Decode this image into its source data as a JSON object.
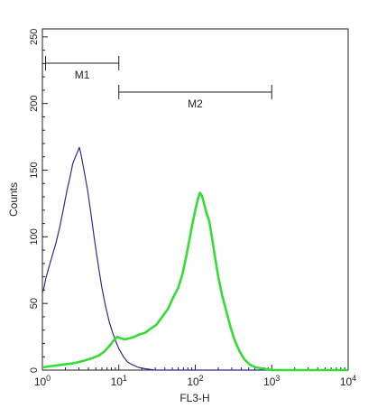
{
  "chart_data": {
    "type": "line",
    "title": "",
    "xlabel": "FL3-H",
    "ylabel": "Counts",
    "x_scale": "log",
    "xlim": [
      1,
      10000
    ],
    "ylim": [
      0,
      256
    ],
    "x_ticks": [
      {
        "value": 1,
        "base": "10",
        "exp": "0"
      },
      {
        "value": 10,
        "base": "10",
        "exp": "1"
      },
      {
        "value": 100,
        "base": "10",
        "exp": "2"
      },
      {
        "value": 1000,
        "base": "10",
        "exp": "3"
      },
      {
        "value": 10000,
        "base": "10",
        "exp": "4"
      }
    ],
    "y_ticks": [
      0,
      50,
      100,
      150,
      200,
      250
    ],
    "grid": false,
    "gates": [
      {
        "label": "M1",
        "range": [
          1.1,
          10
        ]
      },
      {
        "label": "M2",
        "range": [
          10,
          1000
        ]
      }
    ],
    "series": [
      {
        "color": "#2b2f8f",
        "points": [
          [
            1,
            58
          ],
          [
            1.05,
            62
          ],
          [
            1.1,
            68
          ],
          [
            1.2,
            76
          ],
          [
            1.35,
            86
          ],
          [
            1.5,
            95
          ],
          [
            1.7,
            108
          ],
          [
            1.9,
            122
          ],
          [
            2.1,
            135
          ],
          [
            2.3,
            145
          ],
          [
            2.5,
            155
          ],
          [
            2.7,
            160
          ],
          [
            2.9,
            164
          ],
          [
            3.05,
            167
          ],
          [
            3.2,
            162
          ],
          [
            3.5,
            150
          ],
          [
            3.9,
            135
          ],
          [
            4.3,
            118
          ],
          [
            4.8,
            98
          ],
          [
            5.4,
            78
          ],
          [
            6.0,
            62
          ],
          [
            6.7,
            48
          ],
          [
            7.5,
            36
          ],
          [
            8.3,
            28
          ],
          [
            9.2,
            21
          ],
          [
            10,
            16
          ],
          [
            11.5,
            10
          ],
          [
            13,
            6
          ],
          [
            15,
            4
          ],
          [
            18,
            2
          ],
          [
            22,
            1
          ],
          [
            30,
            0
          ],
          [
            100,
            0
          ],
          [
            10000,
            0
          ]
        ]
      },
      {
        "color": "#33dd33",
        "points": [
          [
            1,
            2
          ],
          [
            1.3,
            3
          ],
          [
            1.8,
            4
          ],
          [
            2.5,
            5
          ],
          [
            3.5,
            7
          ],
          [
            4.5,
            9
          ],
          [
            5.5,
            11
          ],
          [
            6.5,
            14
          ],
          [
            7.5,
            18
          ],
          [
            8.5,
            22
          ],
          [
            9.5,
            25
          ],
          [
            10.5,
            24
          ],
          [
            12,
            23
          ],
          [
            14,
            24
          ],
          [
            16,
            25
          ],
          [
            19,
            27
          ],
          [
            22,
            28
          ],
          [
            26,
            31
          ],
          [
            31,
            34
          ],
          [
            37,
            40
          ],
          [
            44,
            46
          ],
          [
            52,
            55
          ],
          [
            60,
            62
          ],
          [
            68,
            72
          ],
          [
            76,
            85
          ],
          [
            84,
            98
          ],
          [
            92,
            110
          ],
          [
            100,
            120
          ],
          [
            108,
            128
          ],
          [
            115,
            133
          ],
          [
            122,
            131
          ],
          [
            130,
            125
          ],
          [
            140,
            118
          ],
          [
            152,
            112
          ],
          [
            165,
            100
          ],
          [
            180,
            86
          ],
          [
            200,
            70
          ],
          [
            225,
            56
          ],
          [
            255,
            44
          ],
          [
            290,
            32
          ],
          [
            330,
            22
          ],
          [
            380,
            14
          ],
          [
            440,
            8
          ],
          [
            520,
            4
          ],
          [
            620,
            2
          ],
          [
            800,
            1
          ],
          [
            1000,
            0
          ],
          [
            10000,
            0
          ]
        ]
      }
    ]
  }
}
